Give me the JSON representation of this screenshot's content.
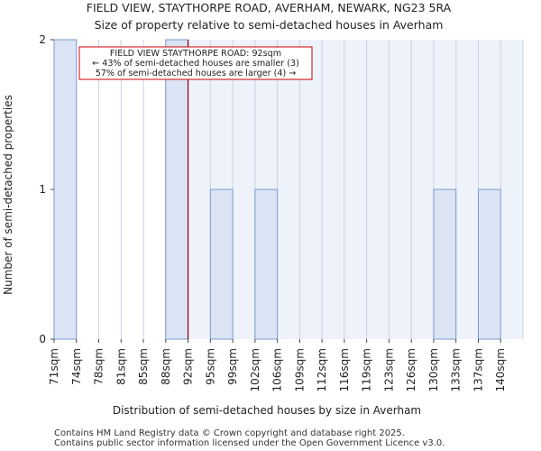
{
  "chart_data": {
    "type": "bar",
    "title_lines": [
      "FIELD VIEW, STAYTHORPE ROAD, AVERHAM, NEWARK, NG23 5RA",
      "Size of property relative to semi-detached houses in Averham"
    ],
    "xlabel": "Distribution of semi-detached houses by size in Averham",
    "ylabel": "Number of semi-detached properties",
    "categories": [
      "71sqm",
      "74sqm",
      "78sqm",
      "81sqm",
      "85sqm",
      "88sqm",
      "92sqm",
      "95sqm",
      "99sqm",
      "102sqm",
      "106sqm",
      "109sqm",
      "112sqm",
      "116sqm",
      "119sqm",
      "123sqm",
      "126sqm",
      "130sqm",
      "133sqm",
      "137sqm",
      "140sqm"
    ],
    "values": [
      2,
      0,
      0,
      0,
      0,
      2,
      0,
      1,
      0,
      1,
      0,
      0,
      0,
      0,
      0,
      0,
      0,
      1,
      0,
      1,
      0
    ],
    "ylim": [
      0,
      2
    ],
    "yticks": [
      "0",
      "1",
      "2"
    ],
    "bar_fill": "#dbe4f4",
    "bar_stroke": "#7a9bd0",
    "highlight_bin": 5,
    "marker_value": "92sqm",
    "marker_color": "#8b0000",
    "annotation_lines": [
      "FIELD VIEW STAYTHORPE ROAD: 92sqm",
      "← 43% of semi-detached houses are smaller (3)",
      "57% of semi-detached houses are larger (4) →"
    ],
    "annotation_border": "#cc0000"
  },
  "footer": [
    "Contains HM Land Registry data © Crown copyright and database right 2025.",
    "Contains public sector information licensed under the Open Government Licence v3.0."
  ]
}
